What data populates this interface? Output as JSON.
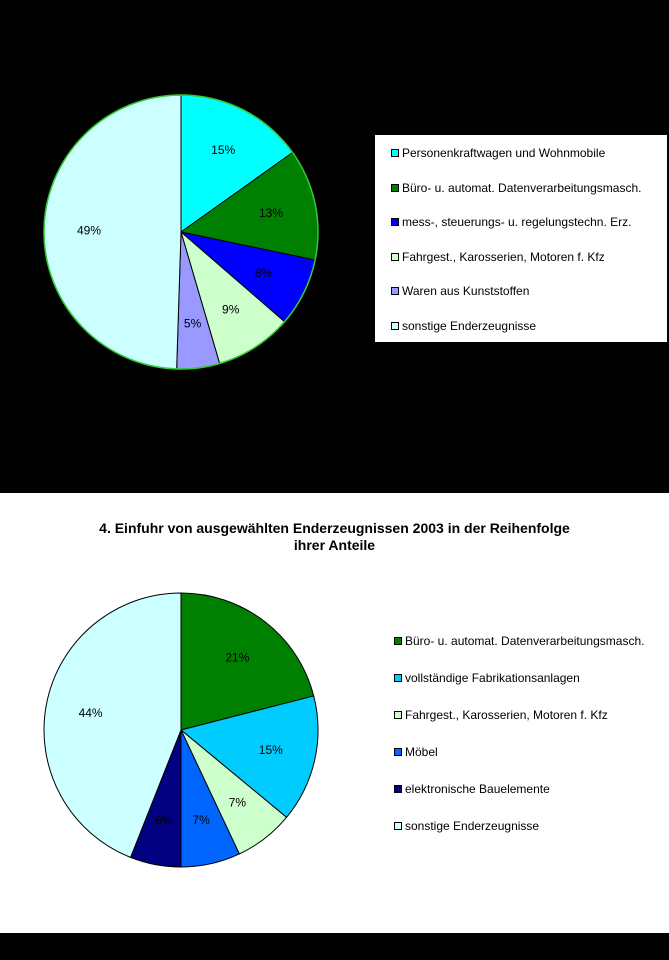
{
  "chart_data": [
    {
      "type": "pie",
      "title": "",
      "slices": [
        {
          "label": "Personenkraftwagen und Wohnmobile",
          "value": 15,
          "value_label": "15%",
          "color": "#00FFFF"
        },
        {
          "label": "Büro- u. automat. Datenverarbeitungsmasch.",
          "value": 13,
          "value_label": "13%",
          "color": "#008000"
        },
        {
          "label": "mess-, steuerungs- u. regelungstechn. Erz.",
          "value": 8,
          "value_label": "8%",
          "color": "#0000FF"
        },
        {
          "label": "Fahrgest., Karosserien, Motoren f. Kfz",
          "value": 9,
          "value_label": "9%",
          "color": "#CCFFCC"
        },
        {
          "label": "Waren aus Kunststoffen",
          "value": 5,
          "value_label": "5%",
          "color": "#9999FF"
        },
        {
          "label": "sonstige Enderzeugnisse",
          "value": 49,
          "value_label": "49%",
          "color": "#CCFFFF"
        }
      ],
      "legend_placement": "right"
    },
    {
      "type": "pie",
      "title": "4. Einfuhr von ausgewählten Enderzeugnissen 2003 in der Reihenfolge ihrer Anteile",
      "title_lines": [
        "4. Einfuhr von ausgewählten Enderzeugnissen 2003 in der Reihenfolge",
        "ihrer Anteile"
      ],
      "slices": [
        {
          "label": "Büro- u. automat. Datenverarbeitungsmasch.",
          "value": 21,
          "value_label": "21%",
          "color": "#008000"
        },
        {
          "label": "vollständige Fabrikationsanlagen",
          "value": 15,
          "value_label": "15%",
          "color": "#00CCFF"
        },
        {
          "label": "Fahrgest., Karosserien, Motoren f. Kfz",
          "value": 7,
          "value_label": "7%",
          "color": "#CCFFCC"
        },
        {
          "label": "Möbel",
          "value": 7,
          "value_label": "7%",
          "color": "#0066FF"
        },
        {
          "label": "elektronische Bauelemente",
          "value": 6,
          "value_label": "6%",
          "color": "#000080"
        },
        {
          "label": "sonstige Enderzeugnisse",
          "value": 44,
          "value_label": "44%",
          "color": "#CCFFFF"
        }
      ],
      "legend_placement": "right"
    }
  ]
}
